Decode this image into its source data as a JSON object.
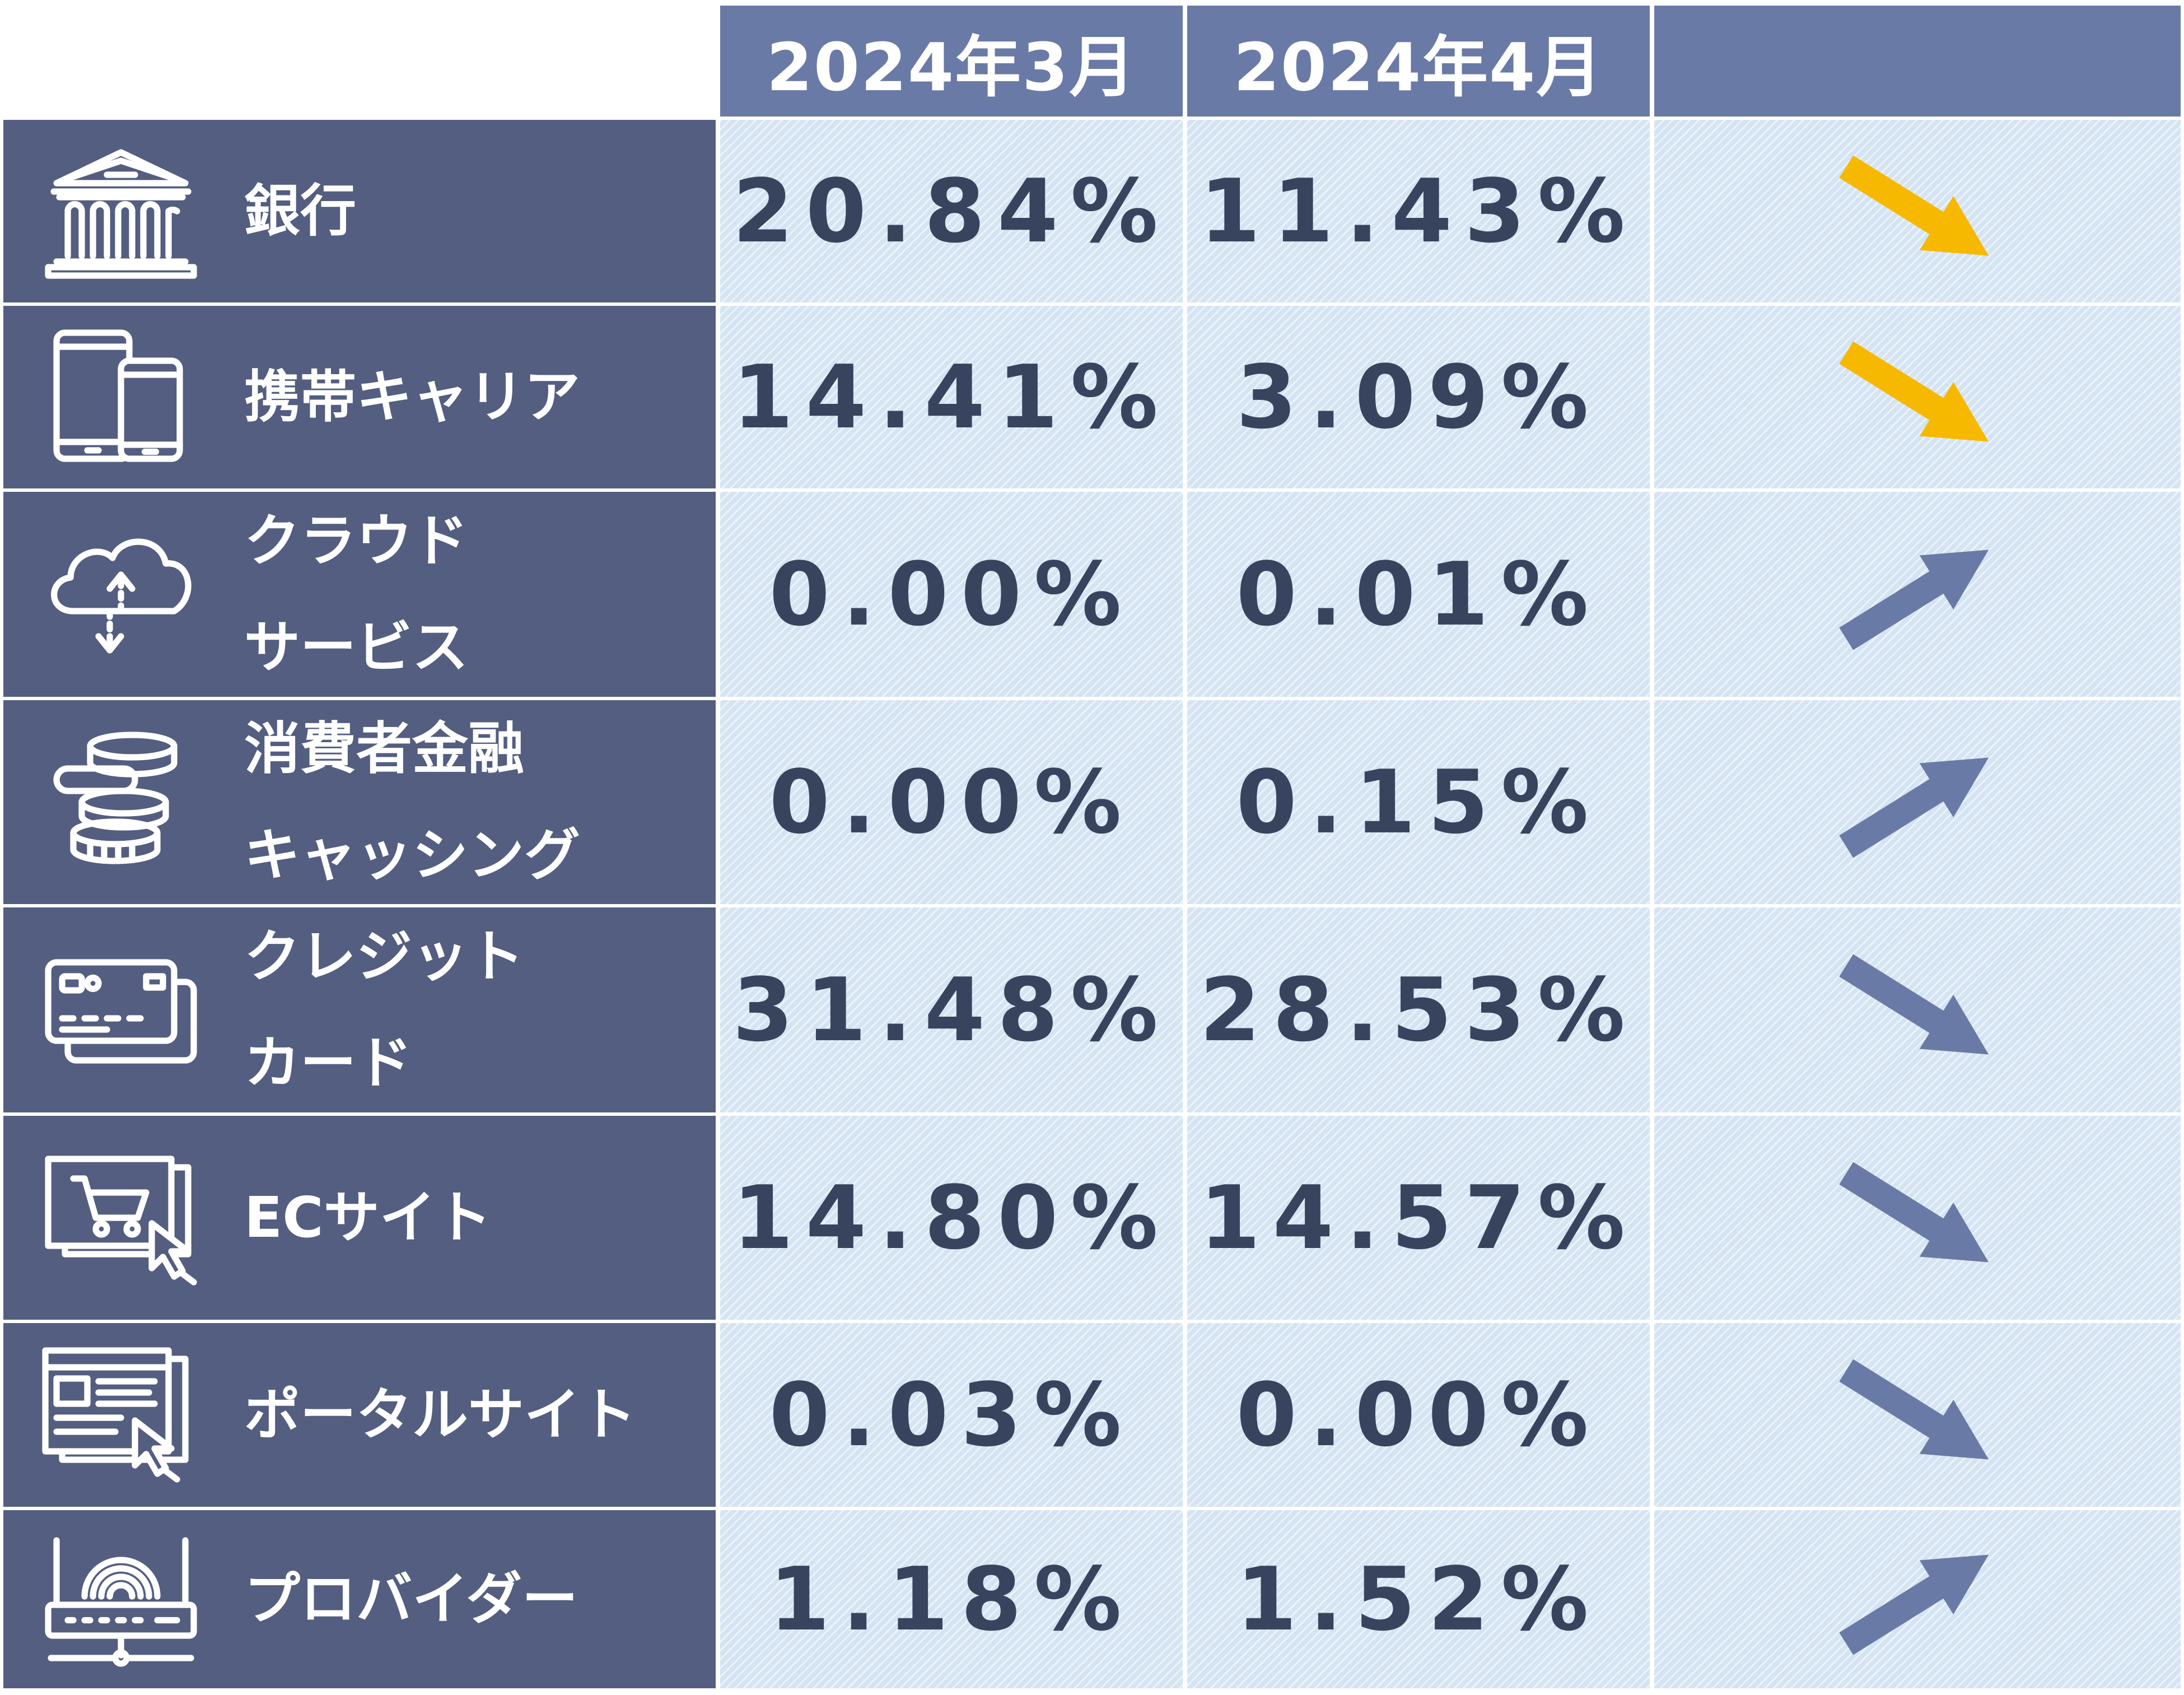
{
  "header": {
    "col1": "2024年3月",
    "col2": "2024年4月",
    "col3": ""
  },
  "colors": {
    "header_bg": "#6a7aa6",
    "label_bg": "#535e80",
    "cell_bg": "#d5e4f3",
    "value_text": "#38445e",
    "arrow_down_highlight": "#f7b900",
    "arrow_default": "#6a7aa6"
  },
  "rows": [
    {
      "icon": "bank-icon",
      "label_lines": [
        "銀行"
      ],
      "mar": "20.84%",
      "apr": "11.43%",
      "trend": "down",
      "highlight": true
    },
    {
      "icon": "mobile-devices-icon",
      "label_lines": [
        "携帯キャリア"
      ],
      "mar": "14.41%",
      "apr": "3.09%",
      "trend": "down",
      "highlight": true
    },
    {
      "icon": "cloud-sync-icon",
      "label_lines": [
        "クラウド",
        "サービス"
      ],
      "mar": "0.00%",
      "apr": "0.01%",
      "trend": "up",
      "highlight": false
    },
    {
      "icon": "coin-stack-icon",
      "label_lines": [
        "消費者金融",
        "キャッシング"
      ],
      "mar": "0.00%",
      "apr": "0.15%",
      "trend": "up",
      "highlight": false
    },
    {
      "icon": "credit-card-icon",
      "label_lines": [
        "クレジット",
        "カード"
      ],
      "mar": "31.48%",
      "apr": "28.53%",
      "trend": "down",
      "highlight": false
    },
    {
      "icon": "ec-shopping-icon",
      "label_lines": [
        "ECサイト"
      ],
      "mar": "14.80%",
      "apr": "14.57%",
      "trend": "down",
      "highlight": false
    },
    {
      "icon": "portal-site-icon",
      "label_lines": [
        "ポータルサイト"
      ],
      "mar": "0.03%",
      "apr": "0.00%",
      "trend": "down",
      "highlight": false
    },
    {
      "icon": "router-icon",
      "label_lines": [
        "プロバイダー"
      ],
      "mar": "1.18%",
      "apr": "1.52%",
      "trend": "up",
      "highlight": false
    }
  ]
}
